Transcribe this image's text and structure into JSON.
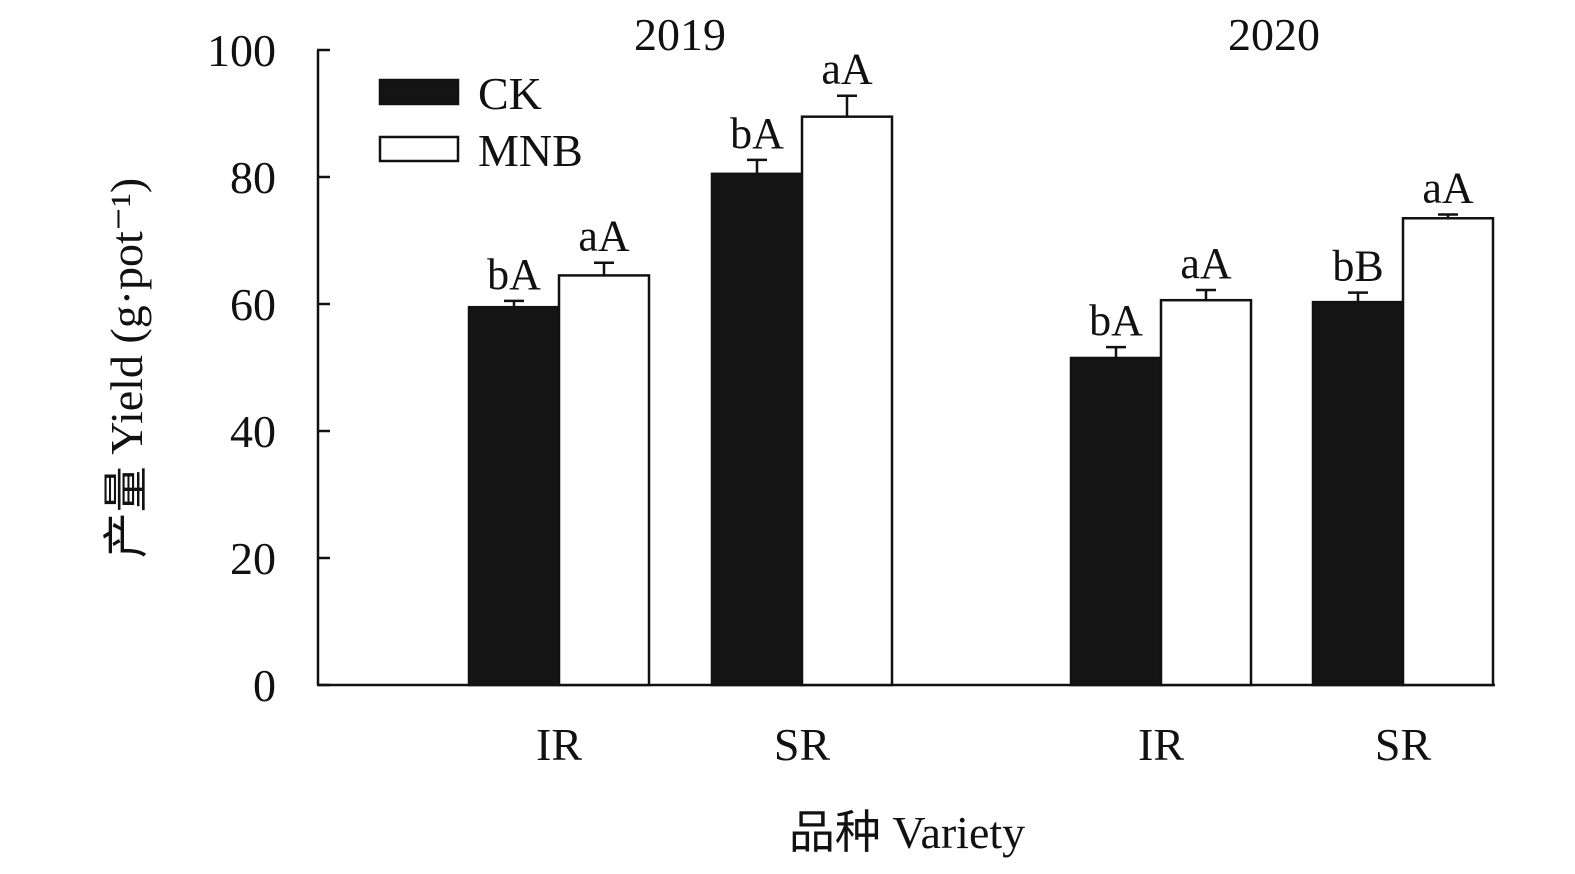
{
  "chart_data": {
    "type": "bar",
    "panels": [
      {
        "title": "2019",
        "categories": [
          "IR",
          "SR"
        ],
        "series": [
          {
            "name": "CK",
            "values": [
              59.5,
              80.5
            ],
            "errors": [
              1.0,
              2.2
            ],
            "labels": [
              "bA",
              "bA"
            ]
          },
          {
            "name": "MNB",
            "values": [
              64.5,
              89.5
            ],
            "errors": [
              2.0,
              3.3
            ],
            "labels": [
              "aA",
              "aA"
            ]
          }
        ]
      },
      {
        "title": "2020",
        "categories": [
          "IR",
          "SR"
        ],
        "series": [
          {
            "name": "CK",
            "values": [
              51.5,
              60.3
            ],
            "errors": [
              1.7,
              1.5
            ],
            "labels": [
              "bA",
              "bB"
            ]
          },
          {
            "name": "MNB",
            "values": [
              60.6,
              73.5
            ],
            "errors": [
              1.6,
              0.6
            ],
            "labels": [
              "aA",
              "aA"
            ]
          }
        ]
      }
    ],
    "xlabel": "品种 Variety",
    "ylabel": "产量 Yield (g·pot⁻¹)",
    "ylim": [
      0,
      100
    ],
    "yticks": [
      0,
      20,
      40,
      60,
      80,
      100
    ],
    "legend": {
      "position": "top-left",
      "entries": [
        "CK",
        "MNB"
      ]
    },
    "grid": false,
    "colors": {
      "CK": "#141414",
      "MNB": "#ffffff",
      "outline": "#111111"
    }
  }
}
